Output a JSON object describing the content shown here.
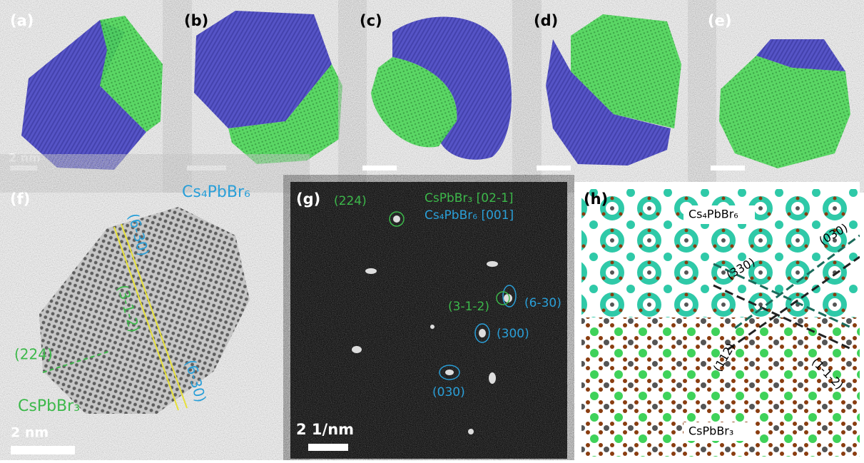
{
  "panels": [
    {
      "label": "(a)",
      "scale": "2 nm"
    },
    {
      "label": "(b)"
    },
    {
      "label": "(c)"
    },
    {
      "label": "(d)"
    },
    {
      "label": "(e)"
    }
  ],
  "f": {
    "label": "(f)",
    "top_phase": "Cs₄PbBr₆",
    "plane_top": "(6-30)",
    "plane_mid": "(3-1-2)",
    "plane_left": "(224)",
    "bottom_phase": "CsPbBr₃",
    "plane_bottom": "(6-30)",
    "scale": "2 nm"
  },
  "g": {
    "label": "(g)",
    "spot_224": "(224)",
    "zone_green": "CsPbBr₃ [02-1]",
    "zone_blue": "Cs₄PbBr₆ [001]",
    "spot_630": "(6-30)",
    "spot_312": "(3-1-2)",
    "spot_300": "(300)",
    "spot_030": "(030)",
    "scale": "2 1/nm"
  },
  "h": {
    "label": "(h)",
    "top_phase": "Cs₄PbBr₆",
    "plane_330": "(330)",
    "plane_030": "(030)",
    "plane_112": "(112)",
    "plane_112b": "(1-1-2)",
    "bottom_phase": "CsPbBr₃"
  }
}
